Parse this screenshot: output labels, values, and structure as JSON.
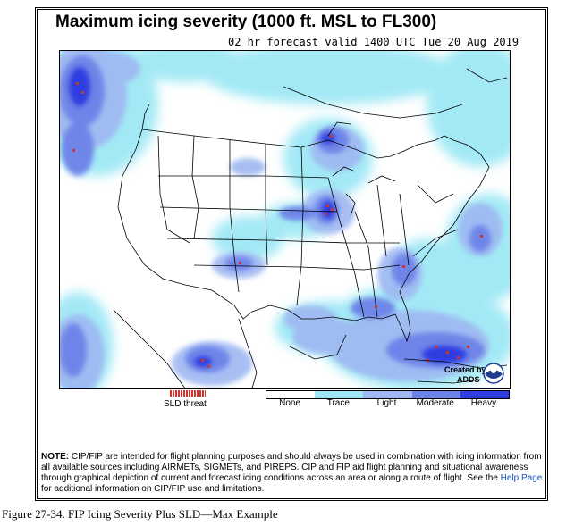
{
  "title": "Maximum icing severity (1000 ft. MSL to FL300)",
  "subtitle": "02 hr forecast valid 1400 UTC Tue 20 Aug 2019",
  "logo": {
    "line1": "Created by",
    "line2": "ADDS",
    "icon": "noaa-logo-icon"
  },
  "legend": {
    "sld_label": "SLD threat",
    "sld_color": "#d0342c",
    "levels": [
      {
        "label": "None",
        "color": "#ffffff"
      },
      {
        "label": "Trace",
        "color": "#9ee8f5"
      },
      {
        "label": "Light",
        "color": "#9fb8f2"
      },
      {
        "label": "Moderate",
        "color": "#6d82e8"
      },
      {
        "label": "Heavy",
        "color": "#2e3ee0"
      }
    ]
  },
  "note": {
    "prefix": "NOTE:",
    "text1": "CIP/FIP are intended for flight planning purposes and should always be used in combination with icing information from all available sources including AIRMETs, SIGMETs, and PIREPS. CIP and FIP aid flight planning and situational awareness through graphical depiction of current and forecast icing conditions across an area or along a route of flight. See the",
    "link": "Help Page",
    "text2": "for additional information on CIP/FIP use and limitations."
  },
  "caption": "Figure 27-34. FIP Icing Severity Plus SLD—Max Example"
}
